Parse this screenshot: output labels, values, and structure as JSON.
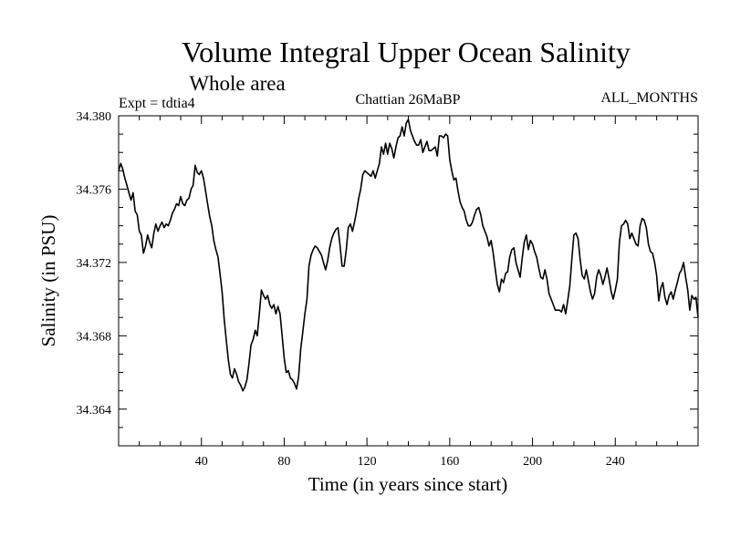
{
  "chart_data": {
    "type": "line",
    "title": "Volume Integral Upper Ocean Salinity",
    "subtitle": "Whole area",
    "experiment_label": "Expt = tdtia4",
    "period_label": "Chattian  26MaBP",
    "months_label": "ALL_MONTHS",
    "xlabel": "Time (in years since start)",
    "ylabel": "Salinity (in PSU)",
    "xlim": [
      0,
      280
    ],
    "ylim": [
      34.362,
      34.38
    ],
    "x_ticks": [
      40,
      80,
      120,
      160,
      200,
      240
    ],
    "x_tick_labels": [
      "40",
      "80",
      "120",
      "160",
      "200",
      "240"
    ],
    "y_ticks": [
      34.364,
      34.368,
      34.372,
      34.376,
      34.38
    ],
    "y_tick_labels": [
      "34.364",
      "34.368",
      "34.372",
      "34.376",
      "34.380"
    ],
    "series": [
      {
        "name": "Salinity",
        "color": "#000000",
        "points": [
          [
            0,
            34.377
          ],
          [
            1,
            34.3774
          ],
          [
            2,
            34.3771
          ],
          [
            3,
            34.3766
          ],
          [
            4,
            34.3762
          ],
          [
            5,
            34.3758
          ],
          [
            6,
            34.3754
          ],
          [
            7,
            34.3758
          ],
          [
            8,
            34.3748
          ],
          [
            9,
            34.3746
          ],
          [
            10,
            34.3737
          ],
          [
            11,
            34.3735
          ],
          [
            12,
            34.3725
          ],
          [
            13,
            34.3729
          ],
          [
            14,
            34.3735
          ],
          [
            15,
            34.3731
          ],
          [
            16,
            34.3728
          ],
          [
            17,
            34.3736
          ],
          [
            18,
            34.3741
          ],
          [
            19,
            34.3737
          ],
          [
            20,
            34.374
          ],
          [
            21,
            34.3742
          ],
          [
            22,
            34.3739
          ],
          [
            23,
            34.3741
          ],
          [
            24,
            34.374
          ],
          [
            25,
            34.3743
          ],
          [
            26,
            34.3747
          ],
          [
            27,
            34.3749
          ],
          [
            28,
            34.3752
          ],
          [
            29,
            34.3751
          ],
          [
            30,
            34.3756
          ],
          [
            31,
            34.3752
          ],
          [
            32,
            34.3751
          ],
          [
            33,
            34.3754
          ],
          [
            34,
            34.3755
          ],
          [
            35,
            34.376
          ],
          [
            36,
            34.3762
          ],
          [
            37,
            34.3773
          ],
          [
            38,
            34.3769
          ],
          [
            39,
            34.3768
          ],
          [
            40,
            34.377
          ],
          [
            41,
            34.3766
          ],
          [
            42,
            34.3759
          ],
          [
            43,
            34.3752
          ],
          [
            44,
            34.3745
          ],
          [
            45,
            34.374
          ],
          [
            46,
            34.3732
          ],
          [
            47,
            34.3727
          ],
          [
            48,
            34.3723
          ],
          [
            49,
            34.3714
          ],
          [
            50,
            34.3704
          ],
          [
            51,
            34.3689
          ],
          [
            52,
            34.3678
          ],
          [
            53,
            34.3667
          ],
          [
            54,
            34.3659
          ],
          [
            55,
            34.3657
          ],
          [
            56,
            34.3662
          ],
          [
            57,
            34.3659
          ],
          [
            58,
            34.3655
          ],
          [
            59,
            34.3653
          ],
          [
            60,
            34.365
          ],
          [
            61,
            34.3652
          ],
          [
            62,
            34.3656
          ],
          [
            63,
            34.3665
          ],
          [
            64,
            34.3675
          ],
          [
            65,
            34.3678
          ],
          [
            66,
            34.3683
          ],
          [
            67,
            34.368
          ],
          [
            68,
            34.3692
          ],
          [
            69,
            34.3705
          ],
          [
            70,
            34.3702
          ],
          [
            71,
            34.37
          ],
          [
            72,
            34.3702
          ],
          [
            73,
            34.3697
          ],
          [
            74,
            34.3695
          ],
          [
            75,
            34.3697
          ],
          [
            76,
            34.3692
          ],
          [
            77,
            34.3696
          ],
          [
            78,
            34.3692
          ],
          [
            79,
            34.368
          ],
          [
            80,
            34.3668
          ],
          [
            81,
            34.366
          ],
          [
            82,
            34.3661
          ],
          [
            83,
            34.3657
          ],
          [
            84,
            34.3656
          ],
          [
            85,
            34.3654
          ],
          [
            86,
            34.3651
          ],
          [
            87,
            34.3658
          ],
          [
            88,
            34.3673
          ],
          [
            89,
            34.3682
          ],
          [
            90,
            34.3692
          ],
          [
            91,
            34.37
          ],
          [
            92,
            34.3718
          ],
          [
            93,
            34.3724
          ],
          [
            94,
            34.3727
          ],
          [
            95,
            34.3729
          ],
          [
            96,
            34.3728
          ],
          [
            97,
            34.3726
          ],
          [
            98,
            34.3724
          ],
          [
            99,
            34.372
          ],
          [
            100,
            34.3716
          ],
          [
            101,
            34.3721
          ],
          [
            102,
            34.3728
          ],
          [
            103,
            34.3733
          ],
          [
            104,
            34.3736
          ],
          [
            105,
            34.3738
          ],
          [
            106,
            34.3739
          ],
          [
            107,
            34.3729
          ],
          [
            108,
            34.3718
          ],
          [
            109,
            34.3718
          ],
          [
            110,
            34.3727
          ],
          [
            111,
            34.3739
          ],
          [
            112,
            34.3741
          ],
          [
            113,
            34.3737
          ],
          [
            114,
            34.3742
          ],
          [
            115,
            34.3748
          ],
          [
            116,
            34.3755
          ],
          [
            117,
            34.376
          ],
          [
            118,
            34.3768
          ],
          [
            119,
            34.377
          ],
          [
            120,
            34.3769
          ],
          [
            121,
            34.3768
          ],
          [
            122,
            34.3767
          ],
          [
            123,
            34.377
          ],
          [
            124,
            34.3766
          ],
          [
            125,
            34.377
          ],
          [
            126,
            34.3774
          ],
          [
            127,
            34.3783
          ],
          [
            128,
            34.3779
          ],
          [
            129,
            34.3785
          ],
          [
            130,
            34.3779
          ],
          [
            131,
            34.3785
          ],
          [
            132,
            34.3782
          ],
          [
            133,
            34.3777
          ],
          [
            134,
            34.3783
          ],
          [
            135,
            34.3788
          ],
          [
            136,
            34.3789
          ],
          [
            137,
            34.3794
          ],
          [
            138,
            34.3789
          ],
          [
            139,
            34.3796
          ],
          [
            140,
            34.3798
          ],
          [
            141,
            34.3792
          ],
          [
            142,
            34.3789
          ],
          [
            143,
            34.3786
          ],
          [
            144,
            34.3784
          ],
          [
            145,
            34.3784
          ],
          [
            146,
            34.3787
          ],
          [
            147,
            34.378
          ],
          [
            148,
            34.3783
          ],
          [
            149,
            34.3786
          ],
          [
            150,
            34.3781
          ],
          [
            151,
            34.3781
          ],
          [
            152,
            34.3782
          ],
          [
            153,
            34.3783
          ],
          [
            154,
            34.3778
          ],
          [
            155,
            34.3789
          ],
          [
            156,
            34.3789
          ],
          [
            157,
            34.3788
          ],
          [
            158,
            34.379
          ],
          [
            159,
            34.3789
          ],
          [
            160,
            34.3776
          ],
          [
            161,
            34.377
          ],
          [
            162,
            34.3765
          ],
          [
            163,
            34.3766
          ],
          [
            164,
            34.3759
          ],
          [
            165,
            34.3753
          ],
          [
            166,
            34.375
          ],
          [
            167,
            34.3748
          ],
          [
            168,
            34.3743
          ],
          [
            169,
            34.374
          ],
          [
            170,
            34.374
          ],
          [
            171,
            34.3742
          ],
          [
            172,
            34.3746
          ],
          [
            173,
            34.3749
          ],
          [
            174,
            34.375
          ],
          [
            175,
            34.3746
          ],
          [
            176,
            34.374
          ],
          [
            177,
            34.3737
          ],
          [
            178,
            34.3734
          ],
          [
            179,
            34.3729
          ],
          [
            180,
            34.3732
          ],
          [
            181,
            34.3725
          ],
          [
            182,
            34.3716
          ],
          [
            183,
            34.3708
          ],
          [
            184,
            34.3704
          ],
          [
            185,
            34.3711
          ],
          [
            186,
            34.3709
          ],
          [
            187,
            34.3714
          ],
          [
            188,
            34.3715
          ],
          [
            189,
            34.3723
          ],
          [
            190,
            34.3727
          ],
          [
            191,
            34.3728
          ],
          [
            192,
            34.372
          ],
          [
            193,
            34.3716
          ],
          [
            194,
            34.3712
          ],
          [
            195,
            34.3722
          ],
          [
            196,
            34.3731
          ],
          [
            197,
            34.3735
          ],
          [
            198,
            34.3727
          ],
          [
            199,
            34.3732
          ],
          [
            200,
            34.373
          ],
          [
            201,
            34.3726
          ],
          [
            202,
            34.3723
          ],
          [
            203,
            34.3717
          ],
          [
            204,
            34.3712
          ],
          [
            205,
            34.3711
          ],
          [
            206,
            34.3716
          ],
          [
            207,
            34.3711
          ],
          [
            208,
            34.3703
          ],
          [
            209,
            34.37
          ],
          [
            210,
            34.3697
          ],
          [
            211,
            34.3694
          ],
          [
            212,
            34.3694
          ],
          [
            213,
            34.3694
          ],
          [
            214,
            34.3693
          ],
          [
            215,
            34.3697
          ],
          [
            216,
            34.3692
          ],
          [
            217,
            34.3699
          ],
          [
            218,
            34.3707
          ],
          [
            219,
            34.3722
          ],
          [
            220,
            34.3735
          ],
          [
            221,
            34.3736
          ],
          [
            222,
            34.3733
          ],
          [
            223,
            34.3722
          ],
          [
            224,
            34.3713
          ],
          [
            225,
            34.3711
          ],
          [
            226,
            34.3716
          ],
          [
            227,
            34.371
          ],
          [
            228,
            34.3704
          ],
          [
            229,
            34.37
          ],
          [
            230,
            34.3703
          ],
          [
            231,
            34.3712
          ],
          [
            232,
            34.3716
          ],
          [
            233,
            34.3713
          ],
          [
            234,
            34.3708
          ],
          [
            235,
            34.3712
          ],
          [
            236,
            34.3717
          ],
          [
            237,
            34.3711
          ],
          [
            238,
            34.3704
          ],
          [
            239,
            34.37
          ],
          [
            240,
            34.3705
          ],
          [
            241,
            34.3711
          ],
          [
            242,
            34.3731
          ],
          [
            243,
            34.374
          ],
          [
            244,
            34.3741
          ],
          [
            245,
            34.3743
          ],
          [
            246,
            34.3741
          ],
          [
            247,
            34.3733
          ],
          [
            248,
            34.3736
          ],
          [
            249,
            34.3733
          ],
          [
            250,
            34.373
          ],
          [
            251,
            34.3729
          ],
          [
            252,
            34.374
          ],
          [
            253,
            34.3744
          ],
          [
            254,
            34.3743
          ],
          [
            255,
            34.3739
          ],
          [
            256,
            34.373
          ],
          [
            257,
            34.3726
          ],
          [
            258,
            34.3725
          ],
          [
            259,
            34.372
          ],
          [
            260,
            34.3713
          ],
          [
            261,
            34.3699
          ],
          [
            262,
            34.3706
          ],
          [
            263,
            34.3709
          ],
          [
            264,
            34.3701
          ],
          [
            265,
            34.3697
          ],
          [
            266,
            34.3702
          ],
          [
            267,
            34.3704
          ],
          [
            268,
            34.37
          ],
          [
            269,
            34.3705
          ],
          [
            270,
            34.3709
          ],
          [
            271,
            34.3714
          ],
          [
            272,
            34.3716
          ],
          [
            273,
            34.372
          ],
          [
            274,
            34.3712
          ],
          [
            275,
            34.3705
          ],
          [
            276,
            34.3694
          ],
          [
            277,
            34.3702
          ],
          [
            278,
            34.37
          ],
          [
            279,
            34.3701
          ],
          [
            280,
            34.369
          ]
        ]
      }
    ]
  }
}
